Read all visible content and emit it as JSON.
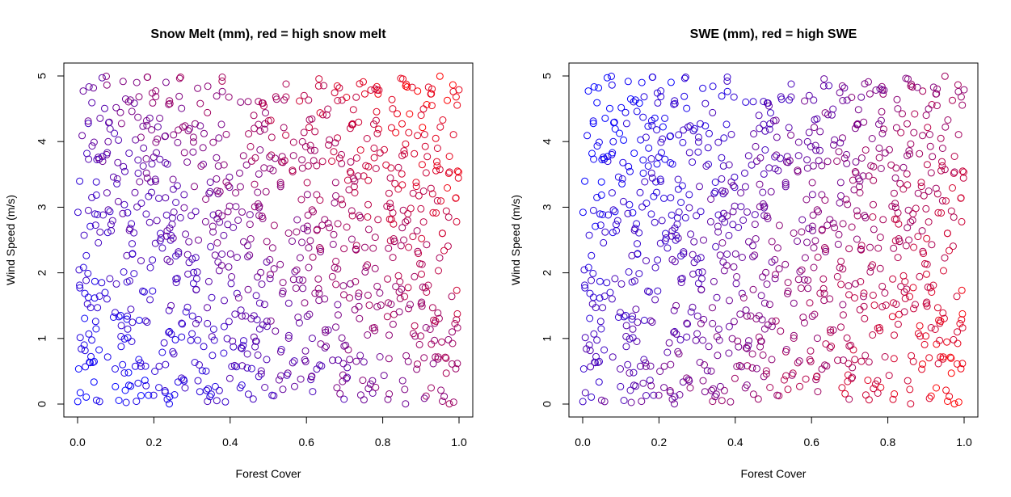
{
  "chart_data": [
    {
      "type": "scatter",
      "title": "Snow Melt (mm), red = high snow melt",
      "xlabel": "Forest Cover",
      "ylabel": "Wind Speed (m/s)",
      "xlim": [
        0,
        1
      ],
      "ylim": [
        0,
        5
      ],
      "xticks": [
        0.0,
        0.2,
        0.4,
        0.6,
        0.8,
        1.0
      ],
      "xtick_labels": [
        "0.0",
        "0.2",
        "0.4",
        "0.6",
        "0.8",
        "1.0"
      ],
      "yticks": [
        0,
        1,
        2,
        3,
        4,
        5
      ],
      "ytick_labels": [
        "0",
        "1",
        "2",
        "3",
        "4",
        "5"
      ],
      "grid": false,
      "legend": "none",
      "color_low": "#0000ff",
      "color_high": "#ff0000",
      "color_rule": "snow_melt",
      "point_count": 1000,
      "seed": 7
    },
    {
      "type": "scatter",
      "title": "SWE (mm), red = high SWE",
      "xlabel": "Forest Cover",
      "ylabel": "Wind Speed (m/s)",
      "xlim": [
        0,
        1
      ],
      "ylim": [
        0,
        5
      ],
      "xticks": [
        0.0,
        0.2,
        0.4,
        0.6,
        0.8,
        1.0
      ],
      "xtick_labels": [
        "0.0",
        "0.2",
        "0.4",
        "0.6",
        "0.8",
        "1.0"
      ],
      "yticks": [
        0,
        1,
        2,
        3,
        4,
        5
      ],
      "ytick_labels": [
        "0",
        "1",
        "2",
        "3",
        "4",
        "5"
      ],
      "grid": false,
      "legend": "none",
      "color_low": "#0000ff",
      "color_high": "#ff0000",
      "color_rule": "swe",
      "point_count": 1000,
      "seed": 7
    }
  ]
}
